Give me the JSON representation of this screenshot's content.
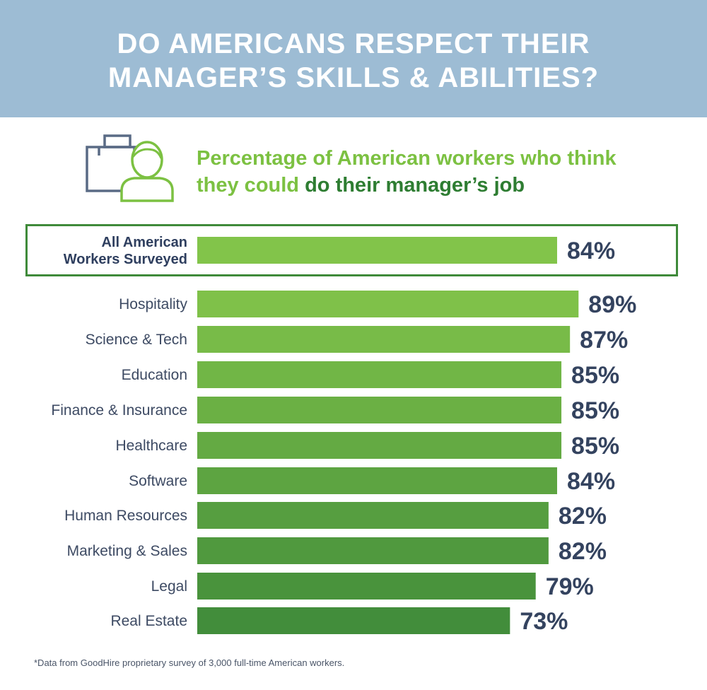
{
  "header": {
    "title_line1": "DO AMERICANS RESPECT THEIR",
    "title_line2": "MANAGER’S SKILLS & ABILITIES?"
  },
  "subtitle": {
    "part1_line1": "Percentage of American workers who think",
    "part1_line2": "they could ",
    "part2": "do their manager’s job"
  },
  "icon": "briefcase-person-icon",
  "colors": {
    "header_bg": "#9dbcd4",
    "bar_light": "#82c44a",
    "bar_dark": "#3f8a3a",
    "highlight_border": "#3f8a3a",
    "value_text": "#34435f"
  },
  "chart_data": {
    "type": "bar",
    "orientation": "horizontal",
    "title": "Percentage of American workers who think they could do their manager’s job",
    "categories": [
      "All American Workers Surveyed",
      "Hospitality",
      "Science & Tech",
      "Education",
      "Finance & Insurance",
      "Healthcare",
      "Software",
      "Human Resources",
      "Marketing & Sales",
      "Legal",
      "Real Estate"
    ],
    "category_lines": [
      [
        "All American",
        "Workers Surveyed"
      ],
      [
        "Hospitality"
      ],
      [
        "Science & Tech"
      ],
      [
        "Education"
      ],
      [
        "Finance & Insurance"
      ],
      [
        "Healthcare"
      ],
      [
        "Software"
      ],
      [
        "Human Resources"
      ],
      [
        "Marketing & Sales"
      ],
      [
        "Legal"
      ],
      [
        "Real Estate"
      ]
    ],
    "values": [
      84,
      89,
      87,
      85,
      85,
      85,
      84,
      82,
      82,
      79,
      73
    ],
    "value_labels": [
      "84%",
      "89%",
      "87%",
      "85%",
      "85%",
      "85%",
      "84%",
      "82%",
      "82%",
      "79%",
      "73%"
    ],
    "unit": "%",
    "highlighted_category": "All American Workers Surveyed",
    "xlim": [
      0,
      100
    ],
    "grid": false,
    "legend": "none"
  },
  "footnote": "*Data from GoodHire proprietary survey of 3,000 full-time American workers."
}
